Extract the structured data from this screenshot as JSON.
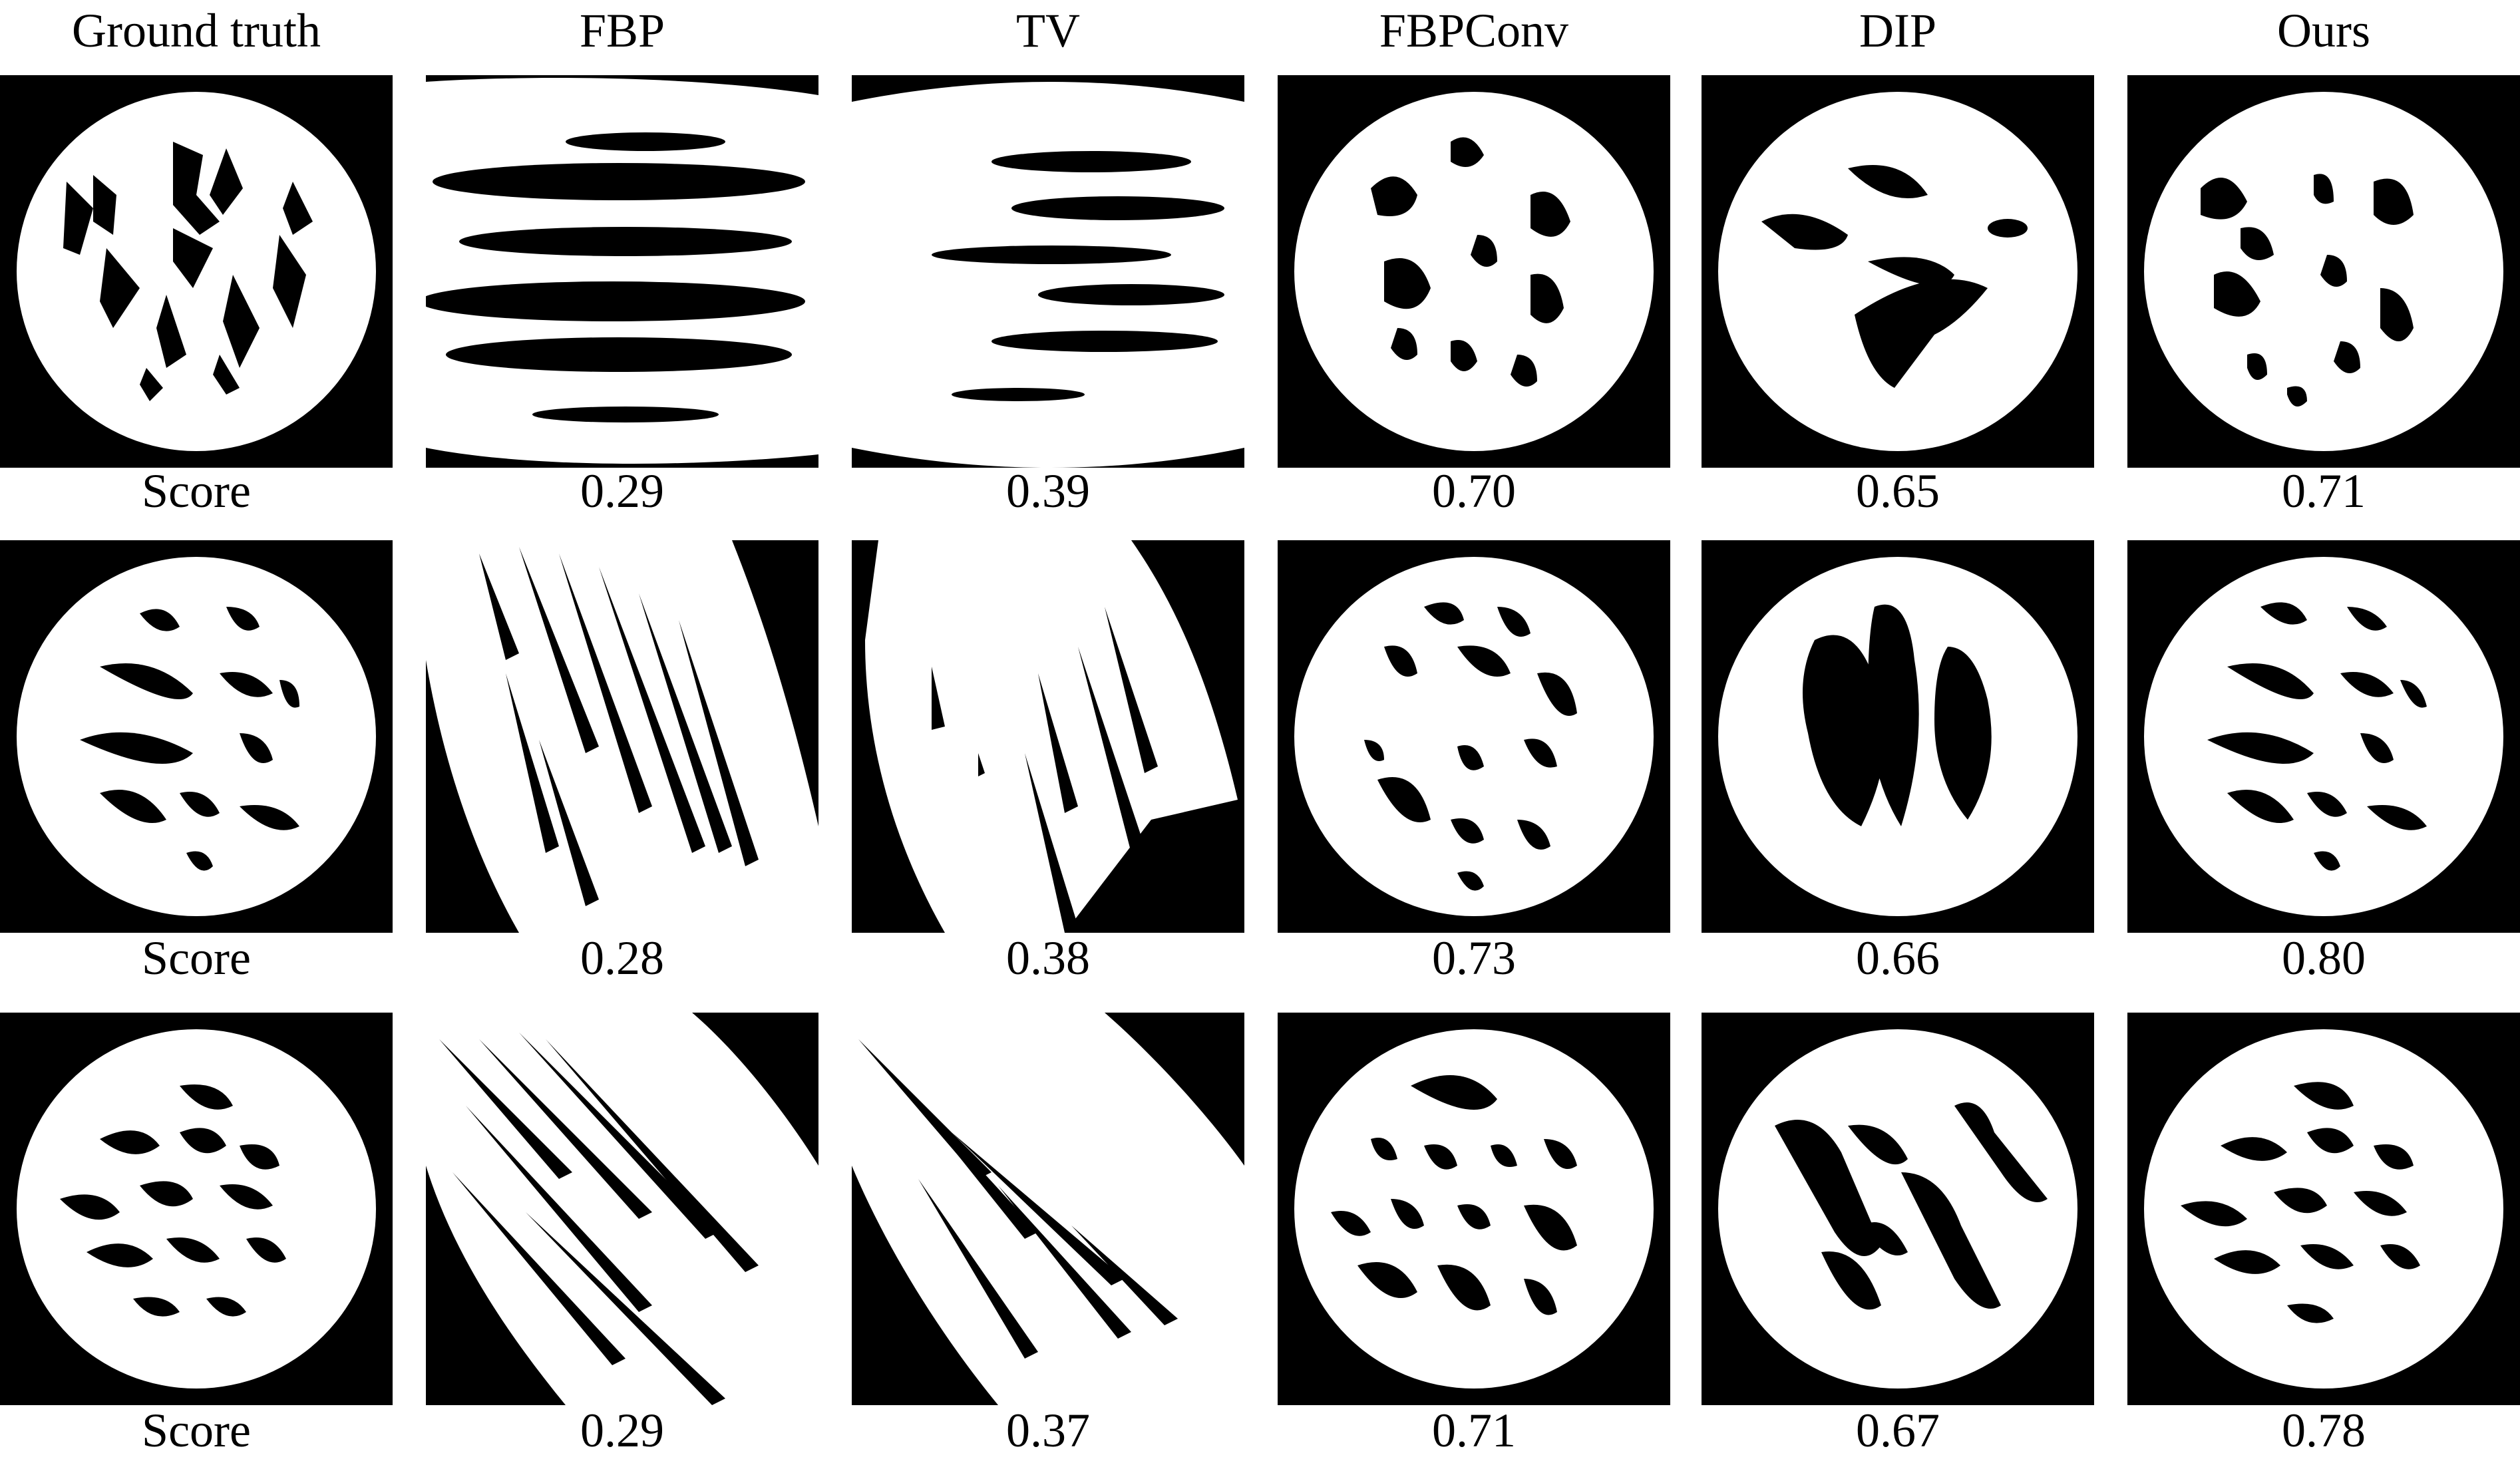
{
  "figure": {
    "columns": [
      {
        "label": "Ground truth"
      },
      {
        "label": "FBP"
      },
      {
        "label": "TV"
      },
      {
        "label": "FBPConv"
      },
      {
        "label": "DIP"
      },
      {
        "label": "Ours"
      }
    ],
    "rows": [
      {
        "scores": [
          "Score",
          "0.29",
          "0.39",
          "0.70",
          "0.65",
          "0.71"
        ]
      },
      {
        "scores": [
          "Score",
          "0.28",
          "0.38",
          "0.73",
          "0.66",
          "0.80"
        ]
      },
      {
        "scores": [
          "Score",
          "0.29",
          "0.37",
          "0.71",
          "0.67",
          "0.78"
        ]
      }
    ],
    "colors": {
      "background": "#000000",
      "foreground": "#ffffff"
    }
  }
}
